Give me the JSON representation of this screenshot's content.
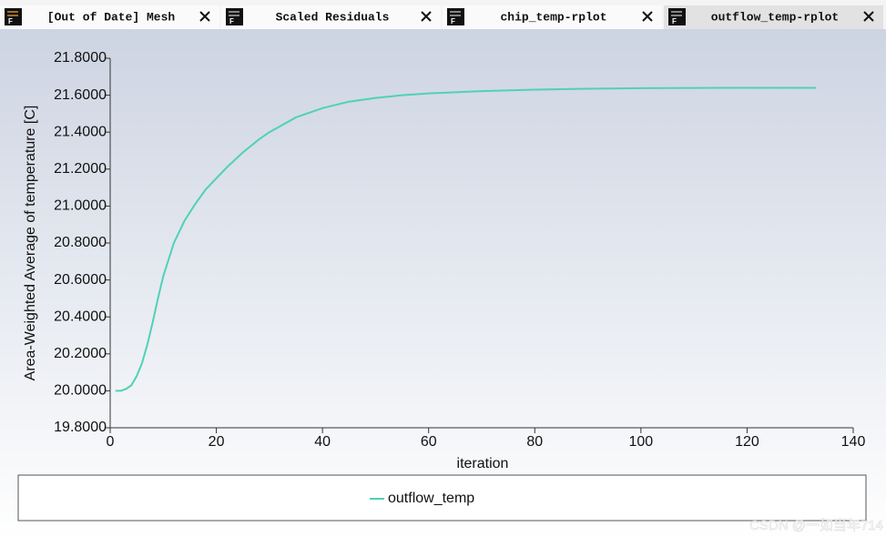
{
  "tabs": [
    "[Out of Date] Mesh",
    "Scaled Residuals",
    "chip_temp-rplot",
    "outflow_temp-rplot"
  ],
  "tab_icon_label": "F",
  "watermark": "CSDN @一如当年714",
  "chart_data": {
    "type": "line",
    "xlabel": "iteration",
    "ylabel": "Area-Weighted Average of temperature [C]",
    "x": [
      1,
      2,
      3,
      4,
      5,
      6,
      7,
      8,
      9,
      10,
      12,
      14,
      16,
      18,
      20,
      22,
      25,
      28,
      30,
      35,
      40,
      45,
      50,
      55,
      60,
      70,
      80,
      90,
      100,
      115,
      133
    ],
    "series": [
      {
        "name": "outflow_temp",
        "color": "#4fd1b8",
        "values": [
          20.0,
          20.0,
          20.01,
          20.03,
          20.08,
          20.15,
          20.25,
          20.37,
          20.5,
          20.62,
          20.8,
          20.92,
          21.01,
          21.09,
          21.15,
          21.21,
          21.29,
          21.36,
          21.4,
          21.48,
          21.53,
          21.565,
          21.585,
          21.6,
          21.61,
          21.622,
          21.63,
          21.635,
          21.638,
          21.64,
          21.64
        ]
      }
    ],
    "xlim": [
      0,
      140
    ],
    "xticks": [
      0,
      20,
      40,
      60,
      80,
      100,
      120,
      140
    ],
    "ylim": [
      19.8,
      21.8
    ],
    "yticks": [
      {
        "value": 19.8,
        "label": "19.8000"
      },
      {
        "value": 20.0,
        "label": "20.0000"
      },
      {
        "value": 20.2,
        "label": "20.2000"
      },
      {
        "value": 20.4,
        "label": "20.4000"
      },
      {
        "value": 20.6,
        "label": "20.6000"
      },
      {
        "value": 20.8,
        "label": "20.8000"
      },
      {
        "value": 21.0,
        "label": "21.0000"
      },
      {
        "value": 21.2,
        "label": "21.2000"
      },
      {
        "value": 21.4,
        "label": "21.4000"
      },
      {
        "value": 21.6,
        "label": "21.6000"
      },
      {
        "value": 21.8,
        "label": "21.8000"
      }
    ],
    "legend": "bottom"
  }
}
